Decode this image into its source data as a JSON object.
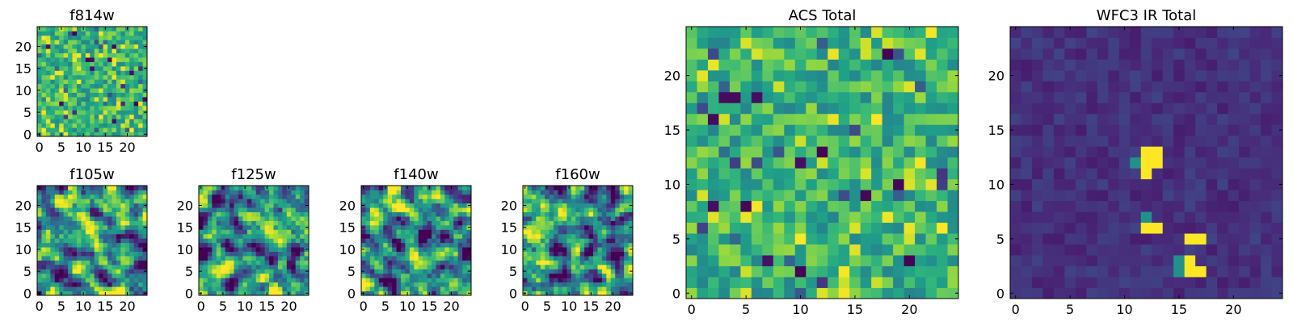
{
  "chart_data": [
    {
      "type": "heatmap",
      "title": "f814w",
      "xlim": [
        -0.5,
        24.5
      ],
      "ylim": [
        -0.5,
        24.5
      ],
      "xticks": [
        0,
        5,
        10,
        15,
        20
      ],
      "yticks": [
        0,
        5,
        10,
        15,
        20
      ],
      "colormap": "viridis",
      "pattern": "noise",
      "seed": 814
    },
    {
      "type": "heatmap",
      "title": "f105w",
      "xlim": [
        -0.5,
        24.5
      ],
      "ylim": [
        -0.5,
        24.5
      ],
      "xticks": [
        0,
        5,
        10,
        15,
        20
      ],
      "yticks": [
        0,
        5,
        10,
        15,
        20
      ],
      "colormap": "viridis",
      "pattern": "smooth",
      "seed": 105
    },
    {
      "type": "heatmap",
      "title": "f125w",
      "xlim": [
        -0.5,
        24.5
      ],
      "ylim": [
        -0.5,
        24.5
      ],
      "xticks": [
        0,
        5,
        10,
        15,
        20
      ],
      "yticks": [
        0,
        5,
        10,
        15,
        20
      ],
      "colormap": "viridis",
      "pattern": "smooth",
      "seed": 125
    },
    {
      "type": "heatmap",
      "title": "f140w",
      "xlim": [
        -0.5,
        24.5
      ],
      "ylim": [
        -0.5,
        24.5
      ],
      "xticks": [
        0,
        5,
        10,
        15,
        20
      ],
      "yticks": [
        0,
        5,
        10,
        15,
        20
      ],
      "colormap": "viridis",
      "pattern": "smooth",
      "seed": 140
    },
    {
      "type": "heatmap",
      "title": "f160w",
      "xlim": [
        -0.5,
        24.5
      ],
      "ylim": [
        -0.5,
        24.5
      ],
      "xticks": [
        0,
        5,
        10,
        15,
        20
      ],
      "yticks": [
        0,
        5,
        10,
        15,
        20
      ],
      "colormap": "viridis",
      "pattern": "smooth",
      "seed": 160
    },
    {
      "type": "heatmap",
      "title": "ACS Total",
      "xlim": [
        -0.5,
        24.5
      ],
      "ylim": [
        -0.5,
        24.5
      ],
      "xticks": [
        0,
        5,
        10,
        15,
        20
      ],
      "yticks": [
        0,
        5,
        10,
        15,
        20
      ],
      "colormap": "viridis",
      "pattern": "noise",
      "seed": 999
    },
    {
      "type": "heatmap",
      "title": "WFC3 IR Total",
      "xlim": [
        -0.5,
        24.5
      ],
      "ylim": [
        -0.5,
        24.5
      ],
      "xticks": [
        0,
        5,
        10,
        15,
        20
      ],
      "yticks": [
        0,
        5,
        10,
        15,
        20
      ],
      "colormap": "viridis",
      "pattern": "sources",
      "seed": 31,
      "bright_pixels": [
        [
          12,
          13
        ],
        [
          13,
          13
        ],
        [
          12,
          12
        ],
        [
          13,
          12
        ],
        [
          12,
          11
        ],
        [
          12,
          6
        ],
        [
          13,
          6
        ],
        [
          16,
          5
        ],
        [
          17,
          5
        ],
        [
          16,
          3
        ],
        [
          16,
          2
        ],
        [
          17,
          2
        ]
      ],
      "mid_pixels": [
        [
          11,
          12
        ],
        [
          12,
          7
        ],
        [
          15,
          3
        ],
        [
          15,
          2
        ]
      ]
    }
  ]
}
